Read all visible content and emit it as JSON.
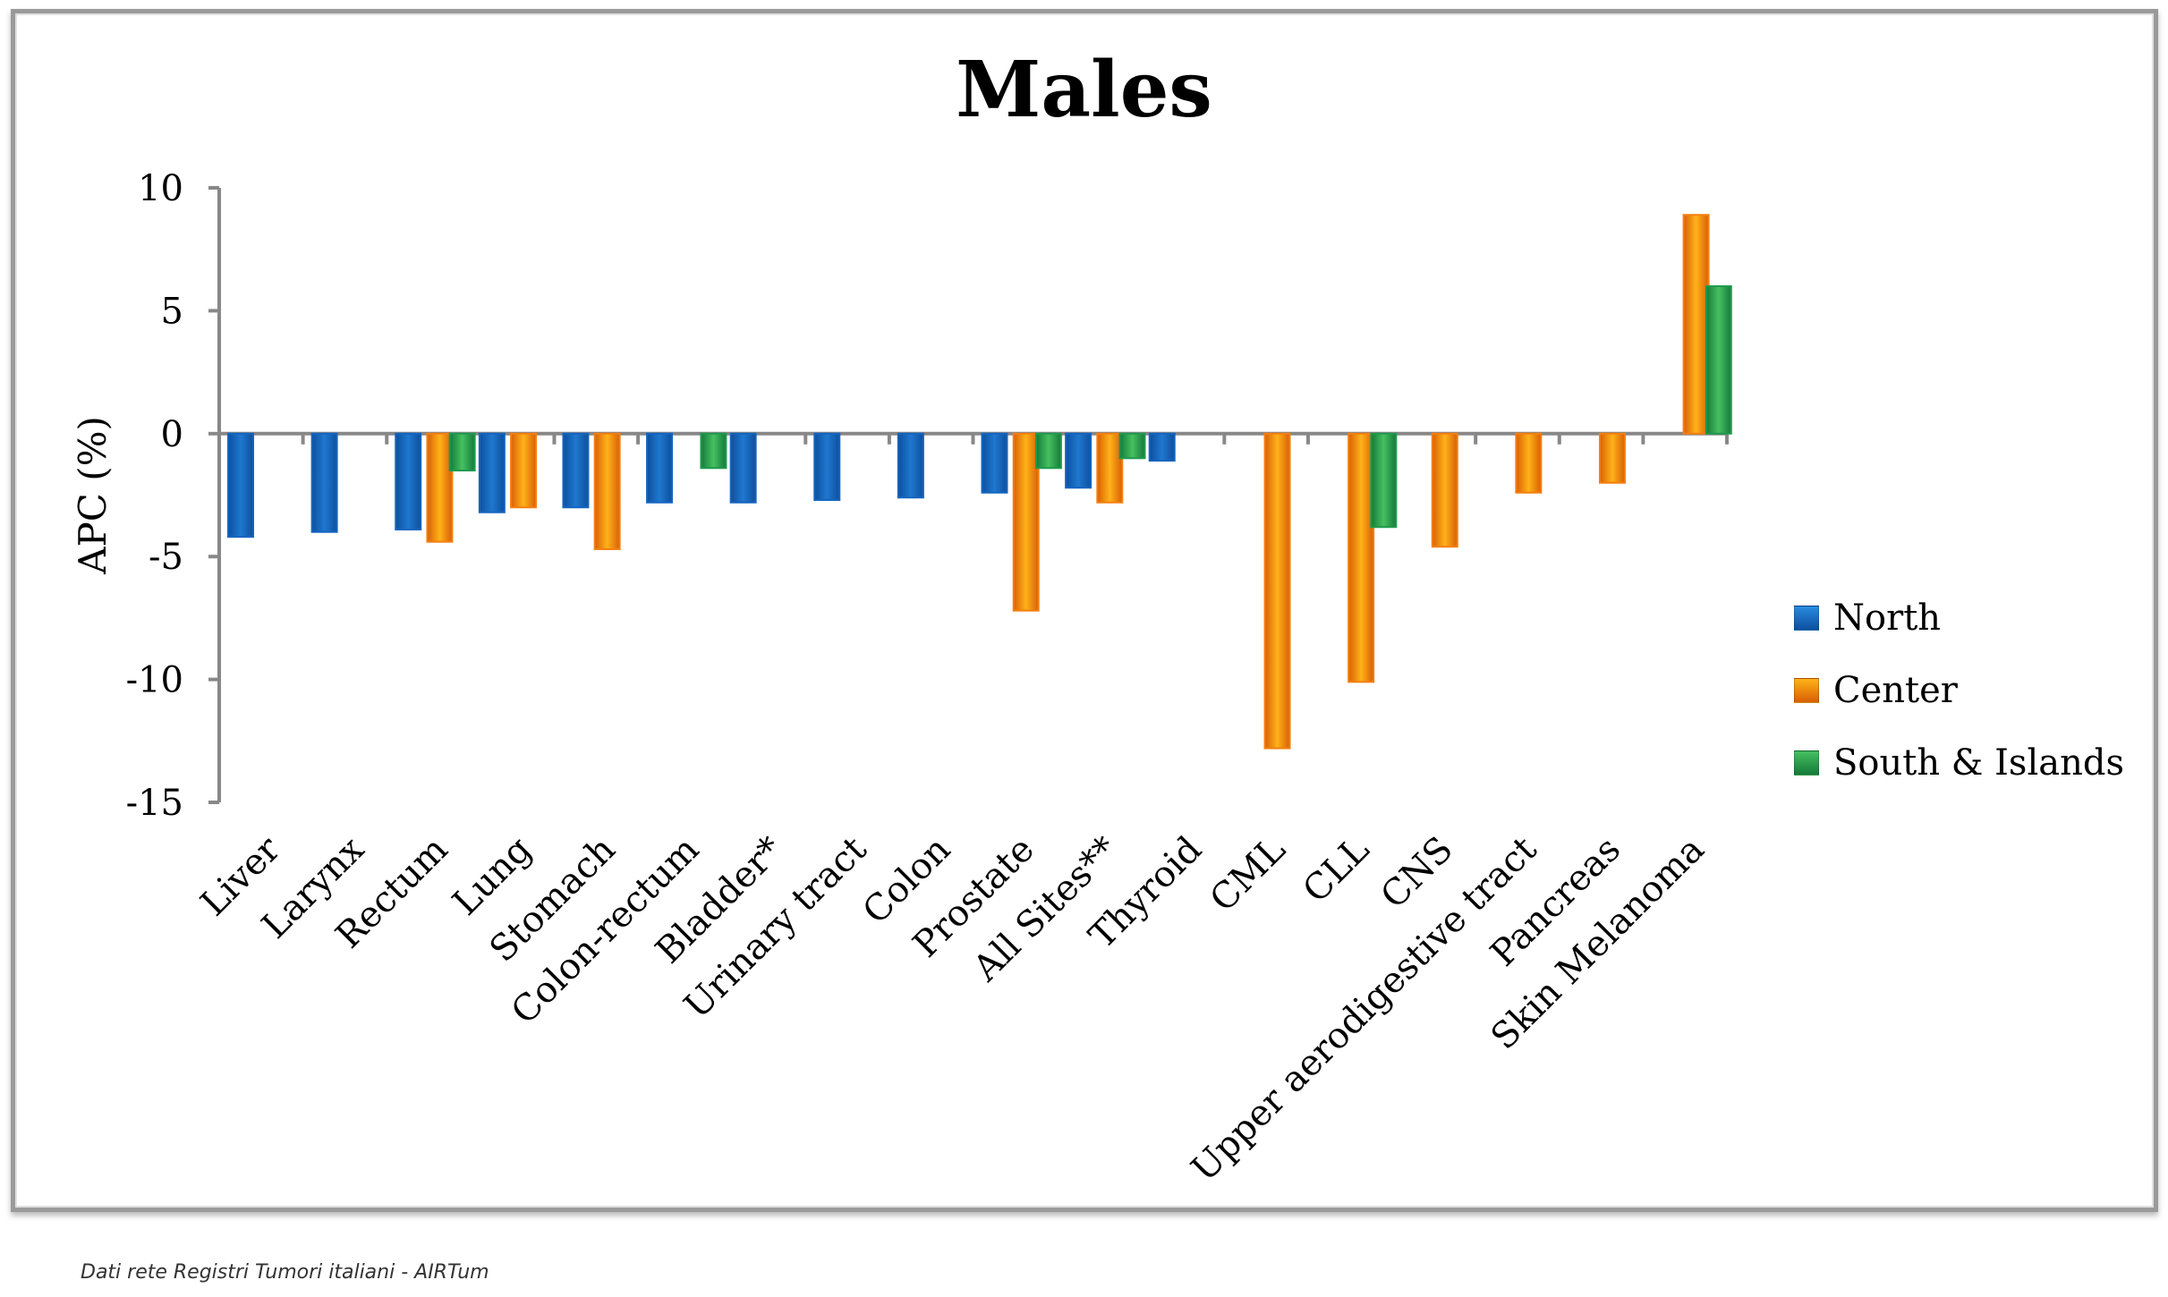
{
  "footer": "Dati rete Registri Tumori italiani - AIRTum",
  "chart_data": {
    "type": "bar",
    "title": "Males",
    "xlabel": "",
    "ylabel": "APC (%)",
    "ylim": [
      -15,
      10
    ],
    "yticks": [
      "10",
      "5",
      "0",
      "-5",
      "-10",
      "-15"
    ],
    "ytick_values": [
      10,
      5,
      0,
      -5,
      -10,
      -15
    ],
    "grid": false,
    "legend_position": "right",
    "categories": [
      "Liver",
      "Larynx",
      "Rectum",
      "Lung",
      "Stomach",
      "Colon-rectum",
      "Bladder*",
      "Urinary tract",
      "Colon",
      "Prostate",
      "All Sites**",
      "Thyroid",
      "CML",
      "CLL",
      "CNS",
      "Upper aerodigestive tract",
      "Pancreas",
      "Skin Melanoma"
    ],
    "series": [
      {
        "name": "North",
        "color": "#1565c0",
        "values": [
          -4.2,
          -4.0,
          -3.9,
          -3.2,
          -3.0,
          -2.8,
          -2.8,
          -2.7,
          -2.6,
          -2.4,
          -2.2,
          -1.1,
          null,
          null,
          null,
          null,
          null,
          null
        ]
      },
      {
        "name": "Center",
        "color": "#f47f10",
        "values": [
          null,
          null,
          -4.4,
          -3.0,
          -4.7,
          null,
          null,
          null,
          null,
          -7.2,
          -2.8,
          null,
          -12.8,
          -10.1,
          -4.6,
          -2.4,
          -2.0,
          8.9
        ]
      },
      {
        "name": "South & Islands",
        "color": "#1f9a4f",
        "values": [
          null,
          null,
          -1.5,
          null,
          null,
          -1.4,
          null,
          null,
          null,
          -1.4,
          -1.0,
          null,
          null,
          -3.8,
          null,
          null,
          null,
          6.0
        ]
      }
    ]
  }
}
